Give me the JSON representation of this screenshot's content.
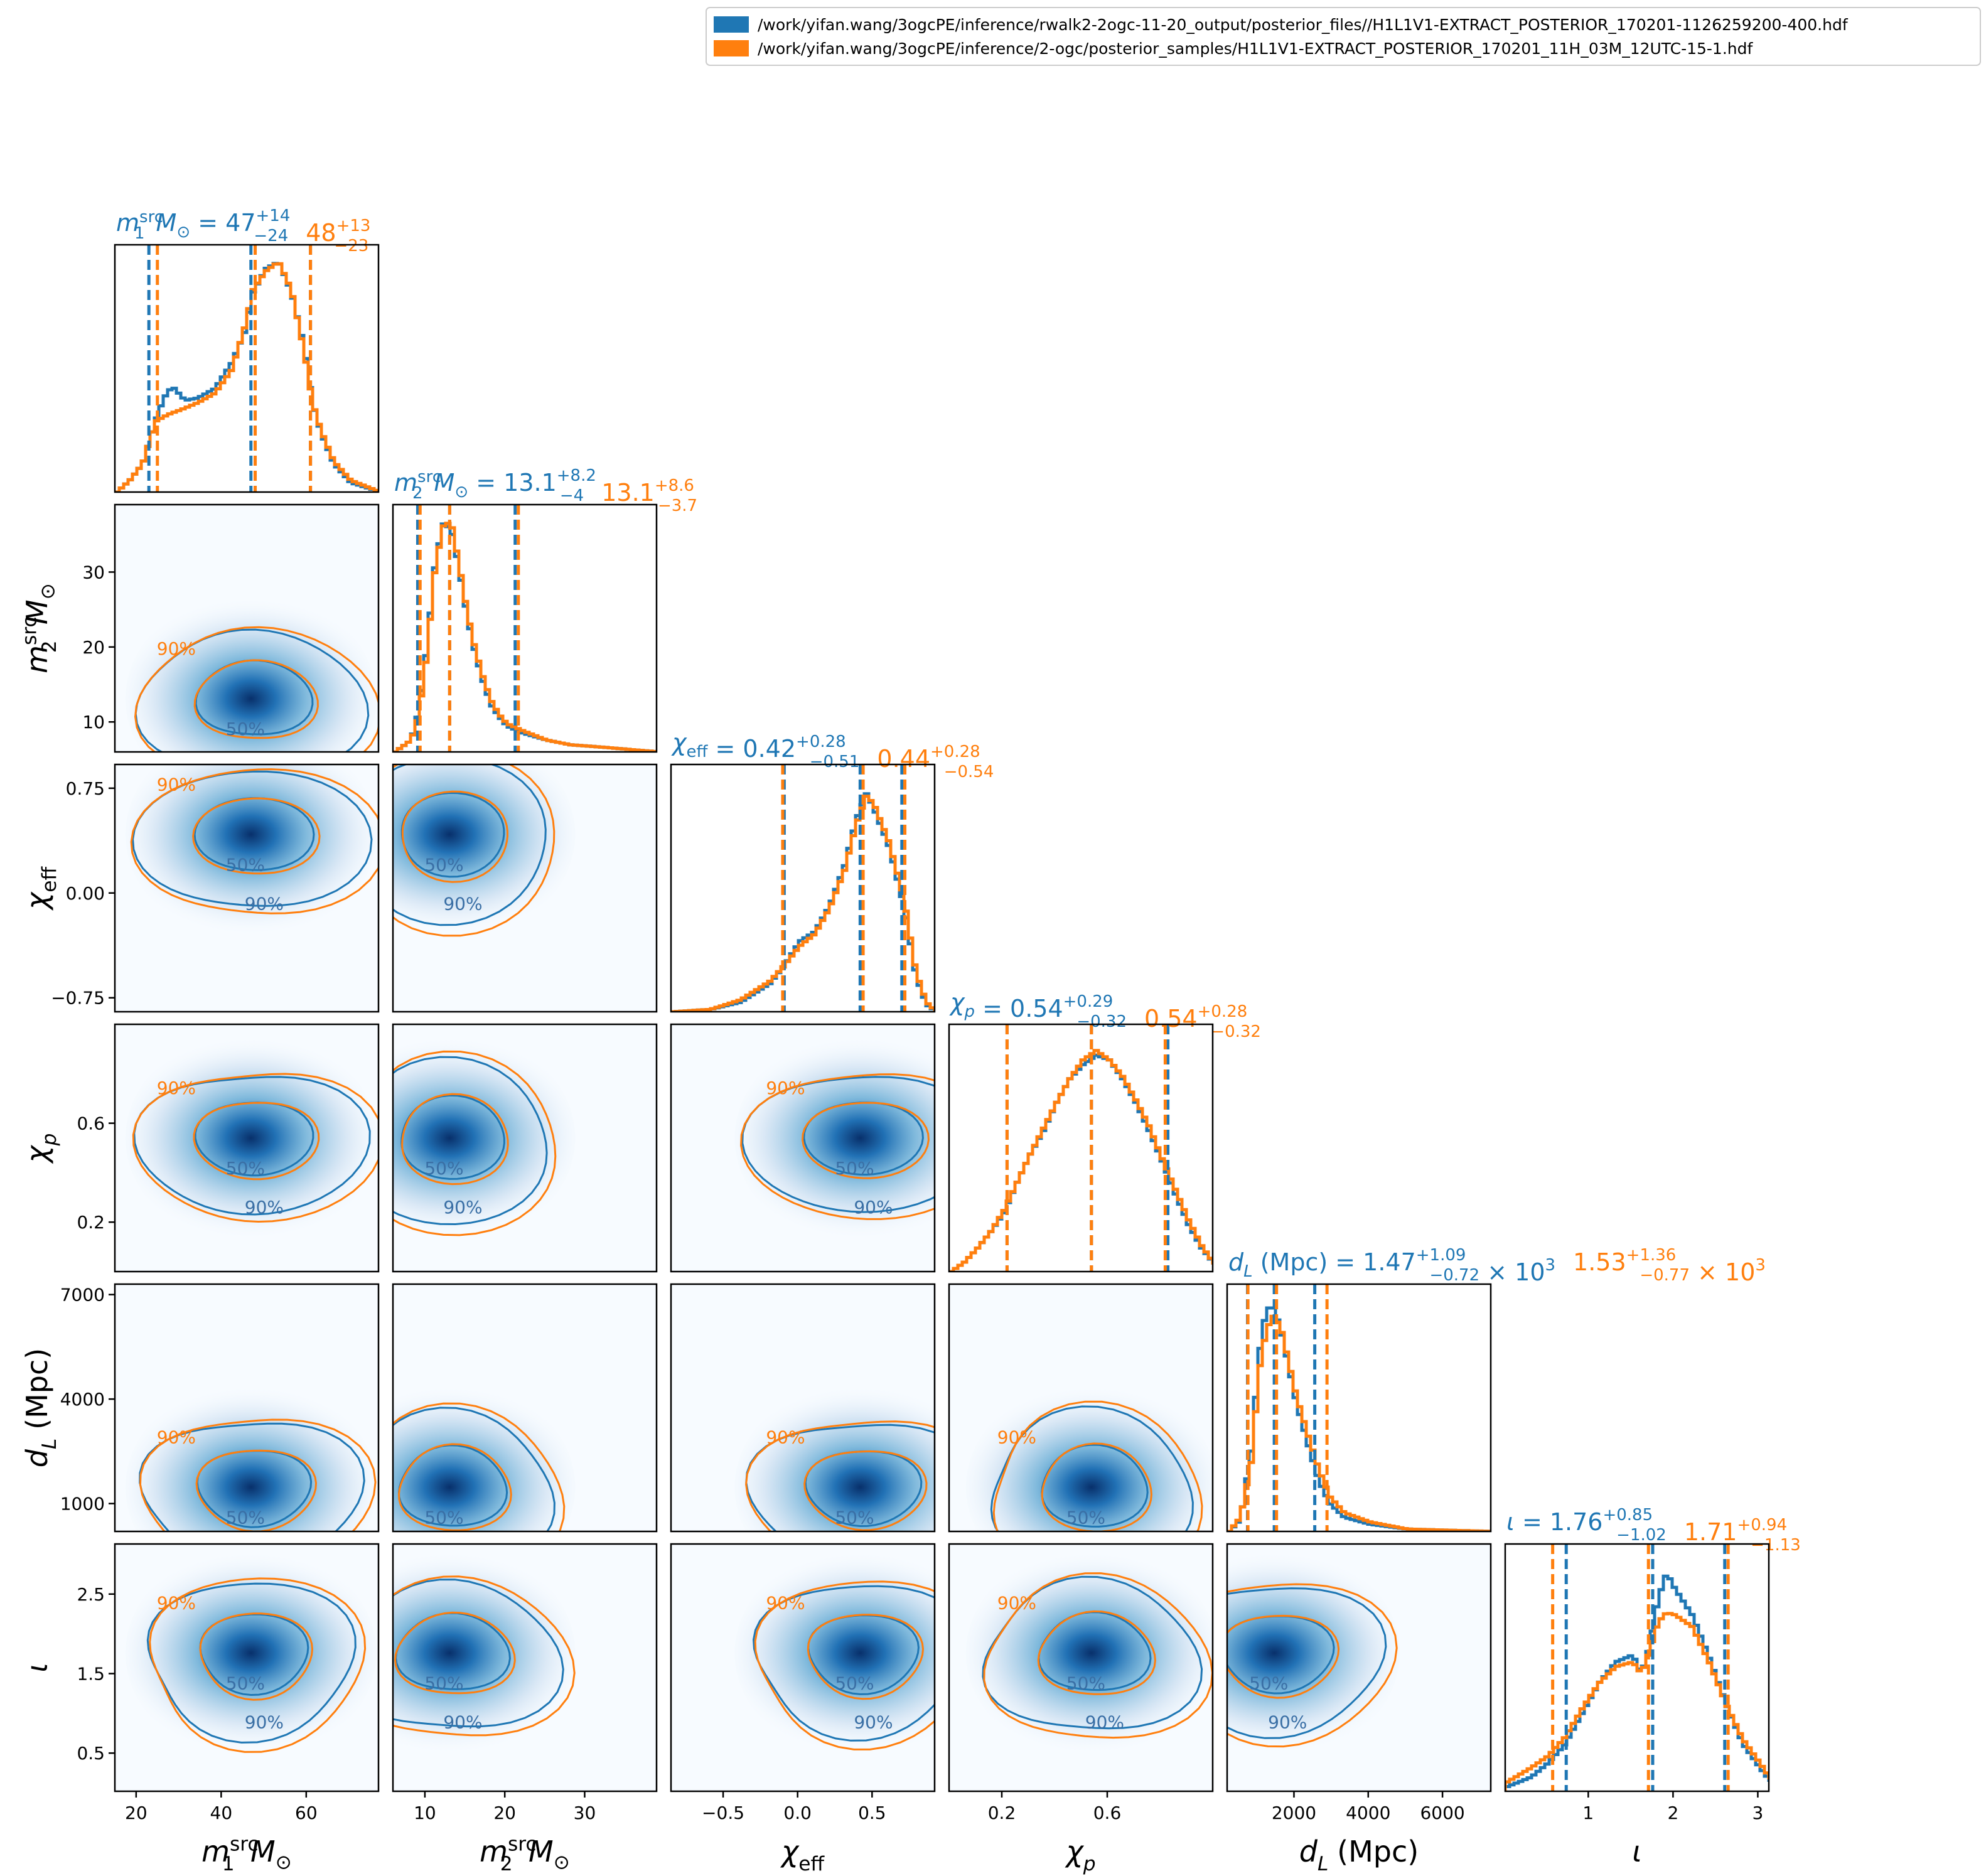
{
  "colors": {
    "blue": "#1f77b4",
    "orange": "#ff7f0e",
    "gray": "#606060",
    "cmap_low": "#f7fbff",
    "cmap_high": "#08306b"
  },
  "legend": [
    {
      "label": "/work/yifan.wang/3ogcPE/inference/rwalk2-2ogc-11-20_output/posterior_files//H1L1V1-EXTRACT_POSTERIOR_170201-1126259200-400.hdf",
      "color": "#1f77b4"
    },
    {
      "label": "/work/yifan.wang/3ogcPE/inference/2-ogc/posterior_samples/H1L1V1-EXTRACT_POSTERIOR_170201_11H_03M_12UTC-15-1.hdf",
      "color": "#ff7f0e"
    }
  ],
  "chart_data": {
    "type": "corner",
    "params": [
      {
        "key": "m1",
        "label_base": "m",
        "label_sub": "1",
        "label_sup": "src",
        "unit": "M",
        "unit_sub": "⊙",
        "range": [
          15,
          77
        ],
        "ticks": [
          20,
          40,
          60
        ],
        "tick_labels": [
          "20",
          "40",
          "60"
        ],
        "blue": {
          "median": "47",
          "plus": "+14",
          "minus": "−24",
          "lo": 23.0,
          "med": 47.0,
          "hi": 61.0
        },
        "orange": {
          "median": "48",
          "plus": "+13",
          "minus": "−23",
          "lo": 25.0,
          "med": 48.0,
          "hi": 61.0
        }
      },
      {
        "key": "m2",
        "label_base": "m",
        "label_sub": "2",
        "label_sup": "src",
        "unit": "M",
        "unit_sub": "⊙",
        "range": [
          6,
          39
        ],
        "ticks": [
          10,
          20,
          30
        ],
        "tick_labels": [
          "10",
          "20",
          "30"
        ],
        "blue": {
          "median": "13.1",
          "plus": "+8.2",
          "minus": "−4",
          "lo": 9.1,
          "med": 13.1,
          "hi": 21.3
        },
        "orange": {
          "median": "13.1",
          "plus": "+8.6",
          "minus": "−3.7",
          "lo": 9.4,
          "med": 13.1,
          "hi": 21.7
        }
      },
      {
        "key": "chi_eff",
        "label_base": "χ",
        "label_sub": "eff",
        "range": [
          -0.85,
          0.92
        ],
        "ticks": [
          -0.75,
          0.0,
          0.75
        ],
        "tick_labels": [
          "−0.75",
          "0.00",
          "0.75"
        ],
        "xticks": [
          -0.5,
          0.0,
          0.5
        ],
        "xtick_labels": [
          "−0.5",
          "0.0",
          "0.5"
        ],
        "blue": {
          "median": "0.42",
          "plus": "+0.28",
          "minus": "−0.51",
          "lo": -0.09,
          "med": 0.42,
          "hi": 0.7
        },
        "orange": {
          "median": "0.44",
          "plus": "+0.28",
          "minus": "−0.54",
          "lo": -0.1,
          "med": 0.44,
          "hi": 0.72
        }
      },
      {
        "key": "chi_p",
        "label_base": "χ",
        "label_sub": "p",
        "range": [
          0.0,
          1.0
        ],
        "ticks": [
          0.2,
          0.6
        ],
        "tick_labels": [
          "0.2",
          "0.6"
        ],
        "blue": {
          "median": "0.54",
          "plus": "+0.29",
          "minus": "−0.32",
          "lo": 0.22,
          "med": 0.54,
          "hi": 0.83
        },
        "orange": {
          "median": "0.54",
          "plus": "+0.28",
          "minus": "−0.32",
          "lo": 0.22,
          "med": 0.54,
          "hi": 0.82
        }
      },
      {
        "key": "dL",
        "label_base": "d",
        "label_sub": "L",
        "unit": "(Mpc)",
        "range": [
          200,
          7300
        ],
        "ticks": [
          1000,
          4000,
          7000
        ],
        "tick_labels": [
          "1000",
          "4000",
          "7000"
        ],
        "xticks": [
          2000,
          4000,
          6000
        ],
        "xtick_labels": [
          "2000",
          "4000",
          "6000"
        ],
        "title_times": "× 10",
        "title_exp": "3",
        "blue": {
          "median": "1.47",
          "plus": "+1.09",
          "minus": "−0.72",
          "lo": 750,
          "med": 1470,
          "hi": 2560
        },
        "orange": {
          "median": "1.53",
          "plus": "+1.36",
          "minus": "−0.77",
          "lo": 760,
          "med": 1530,
          "hi": 2890
        }
      },
      {
        "key": "iota",
        "label_base": "ι",
        "range": [
          0.02,
          3.13
        ],
        "ticks": [
          0.5,
          1.5,
          2.5
        ],
        "tick_labels": [
          "0.5",
          "1.5",
          "2.5"
        ],
        "xticks": [
          1,
          2,
          3
        ],
        "xtick_labels": [
          "1",
          "2",
          "3"
        ],
        "blue": {
          "median": "1.76",
          "plus": "+0.85",
          "minus": "−1.02",
          "lo": 0.74,
          "med": 1.76,
          "hi": 2.61
        },
        "orange": {
          "median": "1.71",
          "plus": "+0.94",
          "minus": "−1.13",
          "lo": 0.58,
          "med": 1.71,
          "hi": 2.65
        }
      }
    ],
    "histograms": {
      "m1": {
        "blue": [
          [
            15,
            0
          ],
          [
            18,
            0.05
          ],
          [
            21,
            0.12
          ],
          [
            24,
            0.3
          ],
          [
            26,
            0.4
          ],
          [
            28,
            0.45
          ],
          [
            31,
            0.39
          ],
          [
            34,
            0.4
          ],
          [
            38,
            0.44
          ],
          [
            42,
            0.55
          ],
          [
            45,
            0.68
          ],
          [
            47,
            0.85
          ],
          [
            50,
            0.95
          ],
          [
            53,
            0.98
          ],
          [
            56,
            0.85
          ],
          [
            59,
            0.62
          ],
          [
            61,
            0.38
          ],
          [
            63,
            0.25
          ],
          [
            66,
            0.12
          ],
          [
            70,
            0.04
          ],
          [
            77,
            0
          ]
        ],
        "orange": [
          [
            15,
            0
          ],
          [
            18,
            0.05
          ],
          [
            21,
            0.12
          ],
          [
            24,
            0.3
          ],
          [
            27,
            0.33
          ],
          [
            30,
            0.35
          ],
          [
            34,
            0.38
          ],
          [
            38,
            0.42
          ],
          [
            42,
            0.52
          ],
          [
            45,
            0.7
          ],
          [
            47,
            0.86
          ],
          [
            50,
            0.94
          ],
          [
            53,
            0.98
          ],
          [
            56,
            0.86
          ],
          [
            59,
            0.6
          ],
          [
            61,
            0.38
          ],
          [
            63,
            0.26
          ],
          [
            66,
            0.13
          ],
          [
            70,
            0.05
          ],
          [
            77,
            0
          ]
        ]
      },
      "m2": {
        "blue": [
          [
            6,
            0
          ],
          [
            8,
            0.05
          ],
          [
            9,
            0.18
          ],
          [
            10,
            0.45
          ],
          [
            11,
            0.8
          ],
          [
            12,
            0.97
          ],
          [
            13,
            0.95
          ],
          [
            14,
            0.78
          ],
          [
            15,
            0.58
          ],
          [
            16,
            0.42
          ],
          [
            17,
            0.3
          ],
          [
            18,
            0.2
          ],
          [
            19,
            0.15
          ],
          [
            20,
            0.11
          ],
          [
            22,
            0.08
          ],
          [
            25,
            0.05
          ],
          [
            28,
            0.03
          ],
          [
            32,
            0.02
          ],
          [
            39,
            0
          ]
        ],
        "orange": [
          [
            6,
            0
          ],
          [
            8,
            0.05
          ],
          [
            9,
            0.16
          ],
          [
            10,
            0.42
          ],
          [
            11,
            0.78
          ],
          [
            12,
            0.96
          ],
          [
            13,
            0.98
          ],
          [
            14,
            0.8
          ],
          [
            15,
            0.6
          ],
          [
            16,
            0.44
          ],
          [
            17,
            0.32
          ],
          [
            18,
            0.22
          ],
          [
            19,
            0.16
          ],
          [
            20,
            0.12
          ],
          [
            22,
            0.09
          ],
          [
            25,
            0.05
          ],
          [
            28,
            0.03
          ],
          [
            32,
            0.02
          ],
          [
            39,
            0
          ]
        ]
      },
      "chi_eff": {
        "blue": [
          [
            -0.85,
            0
          ],
          [
            -0.6,
            0.01
          ],
          [
            -0.4,
            0.04
          ],
          [
            -0.2,
            0.12
          ],
          [
            -0.1,
            0.2
          ],
          [
            0.0,
            0.3
          ],
          [
            0.1,
            0.34
          ],
          [
            0.2,
            0.45
          ],
          [
            0.3,
            0.62
          ],
          [
            0.38,
            0.82
          ],
          [
            0.45,
            0.93
          ],
          [
            0.5,
            0.86
          ],
          [
            0.6,
            0.7
          ],
          [
            0.7,
            0.45
          ],
          [
            0.78,
            0.15
          ],
          [
            0.85,
            0.03
          ],
          [
            0.92,
            0
          ]
        ],
        "orange": [
          [
            -0.85,
            0
          ],
          [
            -0.6,
            0.01
          ],
          [
            -0.4,
            0.05
          ],
          [
            -0.2,
            0.13
          ],
          [
            -0.1,
            0.2
          ],
          [
            0.0,
            0.28
          ],
          [
            0.1,
            0.33
          ],
          [
            0.2,
            0.44
          ],
          [
            0.3,
            0.6
          ],
          [
            0.38,
            0.8
          ],
          [
            0.45,
            0.92
          ],
          [
            0.5,
            0.88
          ],
          [
            0.6,
            0.72
          ],
          [
            0.7,
            0.48
          ],
          [
            0.78,
            0.17
          ],
          [
            0.85,
            0.04
          ],
          [
            0.92,
            0
          ]
        ]
      },
      "chi_p": {
        "blue": [
          [
            0,
            0
          ],
          [
            0.05,
            0.04
          ],
          [
            0.1,
            0.1
          ],
          [
            0.15,
            0.17
          ],
          [
            0.2,
            0.25
          ],
          [
            0.25,
            0.38
          ],
          [
            0.3,
            0.5
          ],
          [
            0.35,
            0.6
          ],
          [
            0.4,
            0.72
          ],
          [
            0.45,
            0.82
          ],
          [
            0.5,
            0.88
          ],
          [
            0.55,
            0.92
          ],
          [
            0.6,
            0.9
          ],
          [
            0.65,
            0.82
          ],
          [
            0.7,
            0.72
          ],
          [
            0.75,
            0.6
          ],
          [
            0.8,
            0.47
          ],
          [
            0.85,
            0.33
          ],
          [
            0.9,
            0.2
          ],
          [
            0.95,
            0.1
          ],
          [
            1.0,
            0.03
          ]
        ],
        "orange": [
          [
            0,
            0
          ],
          [
            0.05,
            0.04
          ],
          [
            0.1,
            0.1
          ],
          [
            0.15,
            0.17
          ],
          [
            0.2,
            0.26
          ],
          [
            0.25,
            0.38
          ],
          [
            0.3,
            0.5
          ],
          [
            0.35,
            0.61
          ],
          [
            0.4,
            0.72
          ],
          [
            0.45,
            0.82
          ],
          [
            0.5,
            0.9
          ],
          [
            0.55,
            0.94
          ],
          [
            0.6,
            0.9
          ],
          [
            0.65,
            0.83
          ],
          [
            0.7,
            0.73
          ],
          [
            0.75,
            0.62
          ],
          [
            0.8,
            0.48
          ],
          [
            0.85,
            0.35
          ],
          [
            0.9,
            0.22
          ],
          [
            0.95,
            0.11
          ],
          [
            1.0,
            0.03
          ]
        ]
      },
      "dL": {
        "blue": [
          [
            200,
            0
          ],
          [
            500,
            0.05
          ],
          [
            800,
            0.35
          ],
          [
            1000,
            0.75
          ],
          [
            1200,
            0.95
          ],
          [
            1400,
            0.95
          ],
          [
            1600,
            0.85
          ],
          [
            1800,
            0.7
          ],
          [
            2000,
            0.55
          ],
          [
            2300,
            0.38
          ],
          [
            2600,
            0.22
          ],
          [
            2900,
            0.12
          ],
          [
            3300,
            0.06
          ],
          [
            4000,
            0.03
          ],
          [
            5000,
            0.01
          ],
          [
            7300,
            0
          ]
        ],
        "orange": [
          [
            200,
            0
          ],
          [
            500,
            0.06
          ],
          [
            800,
            0.3
          ],
          [
            1000,
            0.68
          ],
          [
            1200,
            0.86
          ],
          [
            1400,
            0.92
          ],
          [
            1600,
            0.86
          ],
          [
            1800,
            0.72
          ],
          [
            2000,
            0.58
          ],
          [
            2300,
            0.42
          ],
          [
            2600,
            0.27
          ],
          [
            2900,
            0.15
          ],
          [
            3300,
            0.08
          ],
          [
            4000,
            0.04
          ],
          [
            5000,
            0.01
          ],
          [
            7300,
            0
          ]
        ]
      },
      "iota": {
        "blue": [
          [
            0.02,
            0.02
          ],
          [
            0.3,
            0.06
          ],
          [
            0.5,
            0.12
          ],
          [
            0.7,
            0.2
          ],
          [
            0.9,
            0.33
          ],
          [
            1.1,
            0.46
          ],
          [
            1.3,
            0.55
          ],
          [
            1.5,
            0.58
          ],
          [
            1.6,
            0.5
          ],
          [
            1.7,
            0.62
          ],
          [
            1.8,
            0.82
          ],
          [
            1.9,
            0.93
          ],
          [
            2.0,
            0.86
          ],
          [
            2.2,
            0.75
          ],
          [
            2.4,
            0.57
          ],
          [
            2.6,
            0.37
          ],
          [
            2.8,
            0.2
          ],
          [
            3.0,
            0.1
          ],
          [
            3.13,
            0.04
          ]
        ],
        "orange": [
          [
            0.02,
            0.04
          ],
          [
            0.3,
            0.1
          ],
          [
            0.5,
            0.15
          ],
          [
            0.7,
            0.23
          ],
          [
            0.9,
            0.35
          ],
          [
            1.1,
            0.46
          ],
          [
            1.3,
            0.53
          ],
          [
            1.5,
            0.55
          ],
          [
            1.6,
            0.5
          ],
          [
            1.7,
            0.6
          ],
          [
            1.8,
            0.72
          ],
          [
            1.9,
            0.76
          ],
          [
            2.0,
            0.75
          ],
          [
            2.2,
            0.7
          ],
          [
            2.4,
            0.55
          ],
          [
            2.6,
            0.37
          ],
          [
            2.8,
            0.22
          ],
          [
            3.0,
            0.12
          ],
          [
            3.13,
            0.05
          ]
        ]
      }
    },
    "contour_levels": [
      "50%",
      "90%"
    ]
  }
}
